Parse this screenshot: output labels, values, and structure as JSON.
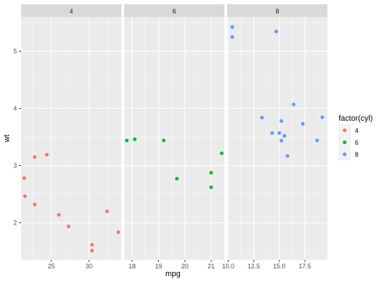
{
  "chart_data": {
    "type": "scatter",
    "facet_variable": "cyl",
    "xlabel": "mpg",
    "ylabel": "wt",
    "y_ticks": [
      2,
      3,
      4,
      5
    ],
    "ylim": [
      1.35,
      5.6
    ],
    "legend": {
      "title": "factor(cyl)",
      "placement": "right",
      "entries": [
        {
          "label": "4",
          "color": "#F8766D"
        },
        {
          "label": "6",
          "color": "#00BA38"
        },
        {
          "label": "8",
          "color": "#619CFF"
        }
      ]
    },
    "panels": [
      {
        "label": "4",
        "color": "#F8766D",
        "xlim": [
          21.0,
          34.3
        ],
        "x_ticks": [
          25,
          30
        ],
        "x_tick_labels": [
          "25",
          "30"
        ],
        "points": [
          [
            22.8,
            2.32
          ],
          [
            24.4,
            3.19
          ],
          [
            22.8,
            3.15
          ],
          [
            32.4,
            2.2
          ],
          [
            30.4,
            1.615
          ],
          [
            33.9,
            1.835
          ],
          [
            21.5,
            2.465
          ],
          [
            27.3,
            1.935
          ],
          [
            26.0,
            2.14
          ],
          [
            30.4,
            1.513
          ],
          [
            21.4,
            2.78
          ]
        ]
      },
      {
        "label": "6",
        "color": "#00BA38",
        "xlim": [
          17.7,
          21.5
        ],
        "x_ticks": [
          18,
          19,
          20,
          21
        ],
        "x_tick_labels": [
          "18",
          "19",
          "20",
          "21"
        ],
        "points": [
          [
            21.0,
            2.62
          ],
          [
            21.0,
            2.875
          ],
          [
            21.4,
            3.215
          ],
          [
            18.1,
            3.46
          ],
          [
            19.2,
            3.44
          ],
          [
            17.8,
            3.44
          ],
          [
            19.7,
            2.77
          ]
        ]
      },
      {
        "label": "8",
        "color": "#619CFF",
        "xlim": [
          9.9,
          19.7
        ],
        "x_ticks": [
          10.0,
          12.5,
          15.0,
          17.5
        ],
        "x_tick_labels": [
          "10.0",
          "12.5",
          "15.0",
          "17.5"
        ],
        "points": [
          [
            18.7,
            3.44
          ],
          [
            14.3,
            3.57
          ],
          [
            16.4,
            4.07
          ],
          [
            17.3,
            3.73
          ],
          [
            15.2,
            3.78
          ],
          [
            10.4,
            5.25
          ],
          [
            10.4,
            5.424
          ],
          [
            14.7,
            5.345
          ],
          [
            15.5,
            3.52
          ],
          [
            15.2,
            3.435
          ],
          [
            13.3,
            3.84
          ],
          [
            19.2,
            3.845
          ],
          [
            15.8,
            3.17
          ],
          [
            15.0,
            3.57
          ]
        ]
      }
    ]
  }
}
